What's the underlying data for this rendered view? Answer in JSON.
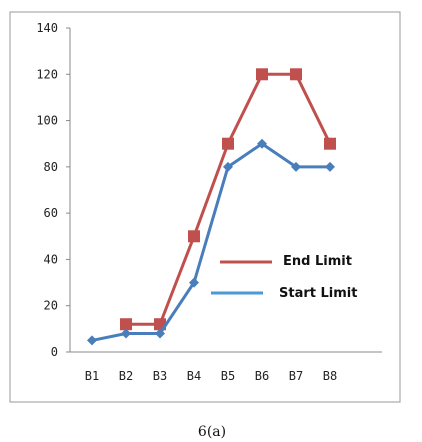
{
  "chart_data": {
    "type": "line",
    "categories": [
      "B1",
      "B2",
      "B3",
      "B4",
      "B5",
      "B6",
      "B7",
      "B8"
    ],
    "series": [
      {
        "name": "End Limit",
        "color": "#c0504d",
        "marker": "square",
        "values": [
          null,
          12,
          12,
          50,
          90,
          120,
          120,
          90
        ]
      },
      {
        "name": "Start Limit",
        "color": "#4a7ebb",
        "marker": "diamond",
        "values": [
          5,
          8,
          8,
          30,
          80,
          90,
          80,
          80
        ]
      }
    ],
    "y_ticks": [
      "0",
      "20",
      "40",
      "60",
      "80",
      "100",
      "120",
      "140"
    ],
    "ylim": [
      0,
      140
    ],
    "grid": false,
    "legend_position": "center-right"
  },
  "caption": "6(a)"
}
